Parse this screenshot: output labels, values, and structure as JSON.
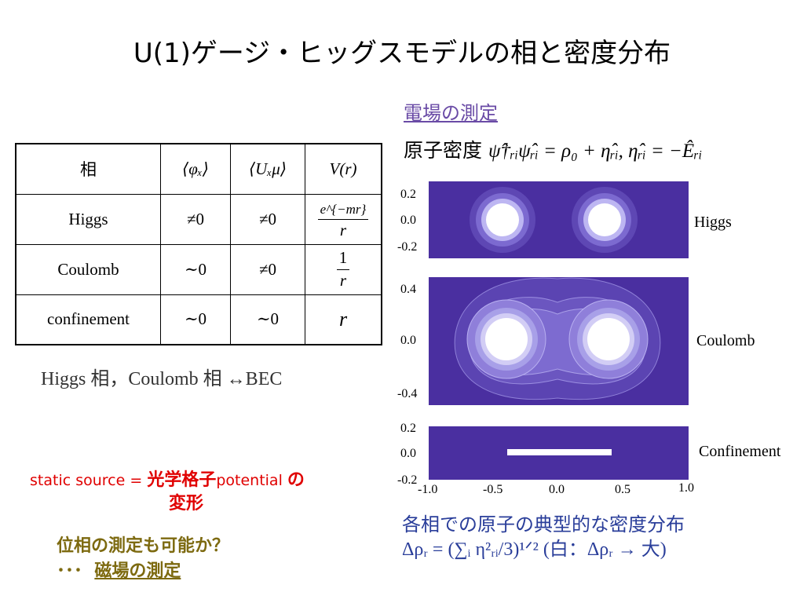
{
  "title": "U(1)ゲージ・ヒッグスモデルの相と密度分布",
  "table": {
    "headers": [
      "相",
      "⟨φₓ⟩",
      "⟨Uₓμ⟩",
      "V(r)"
    ],
    "rows": [
      {
        "phase": "Higgs",
        "phi": "≠0",
        "u": "≠0",
        "v_num": "e^{−mr}",
        "v_den": "r"
      },
      {
        "phase": "Coulomb",
        "phi": "∼0",
        "u": "≠0",
        "v_num": "1",
        "v_den": "r"
      },
      {
        "phase": "confinement",
        "phi": "∼0",
        "u": "∼0",
        "v": "r"
      }
    ]
  },
  "higgs_bec": "Higgs 相，Coulomb 相 ↔BEC",
  "static_source": {
    "prefix": "static source = ",
    "jp1": "光学格子",
    "mid": "potential ",
    "jp2": "の",
    "line2": "変形"
  },
  "question": {
    "line1": "位相の測定も可能か？",
    "dots": "･･･",
    "line2": "磁場の測定"
  },
  "efield_heading": "電場の測定",
  "density_eq": {
    "label": "原子密度 ",
    "formula": "ψ̂†ᵣᵢψ̂ᵣᵢ = ρ₀ + η̂ᵣᵢ,  η̂ᵣᵢ = −Êᵣᵢ"
  },
  "figure": {
    "panels": [
      {
        "label": "Higgs",
        "yticks": [
          "0.2",
          "0.0",
          "-0.2"
        ]
      },
      {
        "label": "Coulomb",
        "yticks": [
          "0.4",
          "0.0",
          "-0.4"
        ]
      },
      {
        "label": "Confinement",
        "yticks": [
          "0.2",
          "0.0",
          "-0.2"
        ]
      }
    ],
    "xticks": [
      "-1.0",
      "-0.5",
      "0.0",
      "0.5",
      "1.0"
    ],
    "colors": {
      "background": "#4a2fa0",
      "light": "#b9b3f0",
      "white": "#ffffff"
    }
  },
  "caption": {
    "line1": "各相での原子の典型的な密度分布",
    "line2": "Δρᵣ = (∑ᵢ η²ᵣᵢ/3)¹ᐟ² (白：Δρᵣ → 大)"
  }
}
